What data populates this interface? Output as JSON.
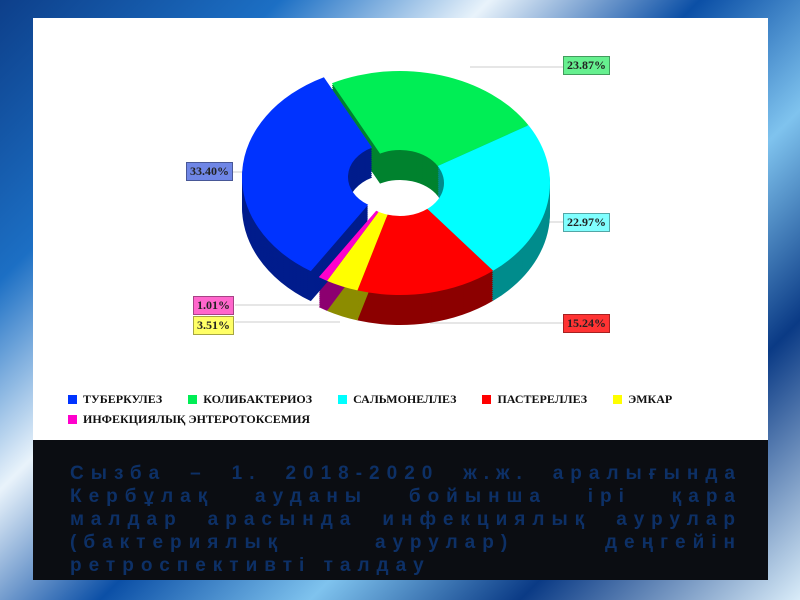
{
  "chart_data": {
    "type": "pie",
    "style": "3d-donut",
    "categories": [
      "ТУБЕРКУЛЕЗ",
      "КОЛИБАКТЕРИОЗ",
      "САЛЬМОНЕЛЛЕЗ",
      "ПАСТЕРЕЛЛЕЗ",
      "ЭМКАР",
      "ИНФЕКЦИЯЛЫҚ ЭНТЕРОТОКСЕМИЯ"
    ],
    "values": [
      33.4,
      23.87,
      22.97,
      15.24,
      3.51,
      1.01
    ],
    "data_labels": [
      "33.40%",
      "23.87%",
      "22.97%",
      "15.24%",
      "3.51%",
      "1.01%"
    ],
    "colors": [
      "#0033ff",
      "#00ee55",
      "#00ffff",
      "#ff0000",
      "#ffff00",
      "#ff00cc"
    ],
    "legend_position": "bottom"
  },
  "caption": "Сызба – 1. 2018-2020 ж.ж. аралығында Кербұлақ ауданы бойынша ірі қара малдар арасында инфекциялық аурулар (бактериялық аурулар) деңгейін ретроспективті талдау"
}
